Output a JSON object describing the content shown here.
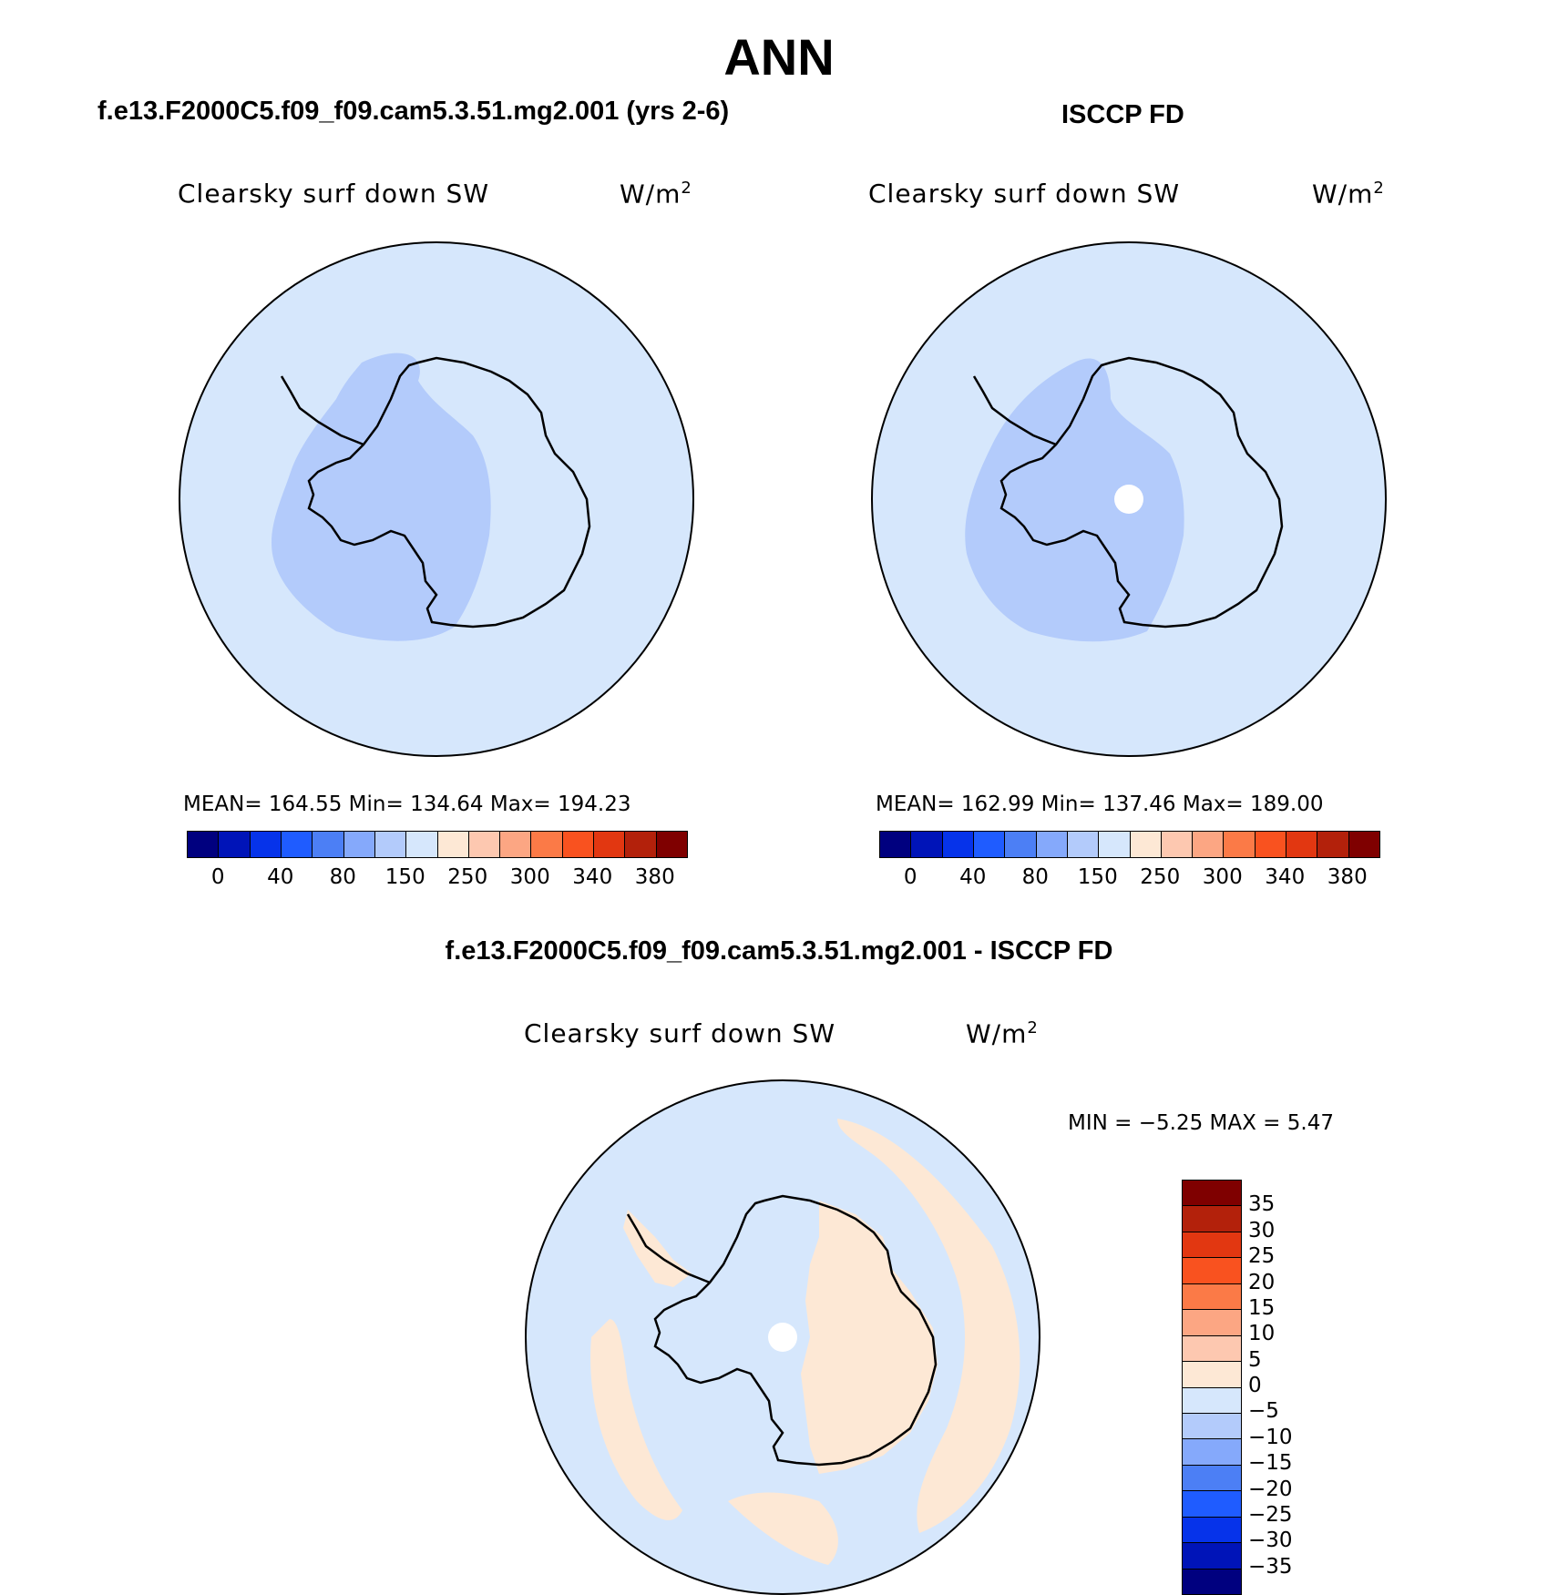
{
  "title": "ANN",
  "panels": [
    {
      "case_title": "f.e13.F2000C5.f09_f09.cam5.3.51.mg2.001 (yrs 2-6)",
      "variable": "Clearsky surf down SW",
      "units": "W/m",
      "units_exp": "2",
      "stats": "MEAN=  164.55   Min=  134.64   Max=  194.23"
    },
    {
      "case_title": "ISCCP FD",
      "variable": "Clearsky surf down SW",
      "units": "W/m",
      "units_exp": "2",
      "stats": "MEAN=  162.99   Min=  137.46   Max=  189.00"
    }
  ],
  "colorbar_top": {
    "levels": [
      "0",
      "40",
      "80",
      "150",
      "250",
      "300",
      "340",
      "380"
    ],
    "colors": [
      "#00007f",
      "#0014b8",
      "#0633ea",
      "#1f5cff",
      "#4c7ff5",
      "#85a9fb",
      "#b3cbfb",
      "#d6e7fc",
      "#fde8d5",
      "#fdc8b0",
      "#fca683",
      "#fb7a47",
      "#f9521f",
      "#e23711",
      "#b3210b",
      "#7f0000"
    ]
  },
  "diff": {
    "title": "f.e13.F2000C5.f09_f09.cam5.3.51.mg2.001 - ISCCP FD",
    "variable": "Clearsky surf down SW",
    "units": "W/m",
    "units_exp": "2",
    "minmax": "MIN =   −5.25 MAX =    5.47"
  },
  "colorbar_diff": {
    "levels": [
      "35",
      "30",
      "25",
      "20",
      "15",
      "10",
      "5",
      "0",
      "−5",
      "−10",
      "−15",
      "−20",
      "−25",
      "−30",
      "−35"
    ],
    "colors": [
      "#7f0000",
      "#b3210b",
      "#e23711",
      "#f9521f",
      "#fb7a47",
      "#fca683",
      "#fdc8b0",
      "#fde8d5",
      "#d6e7fc",
      "#b3cbfb",
      "#85a9fb",
      "#4c7ff5",
      "#1f5cff",
      "#0633ea",
      "#0014b8",
      "#00007f"
    ]
  },
  "map_colors": {
    "ocean_base": "#d6e7fc",
    "low_region": "#b3cbfb",
    "positive_diff": "#fde8d5",
    "missing": "#ffffff"
  }
}
